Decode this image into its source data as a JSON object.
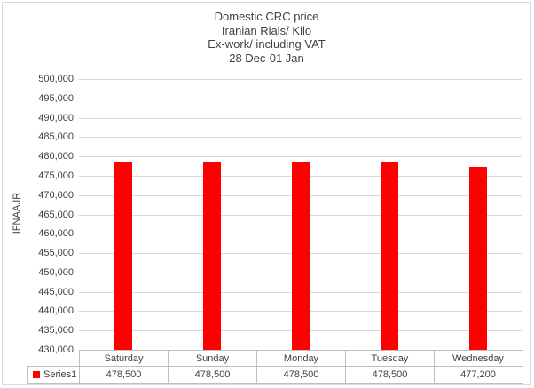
{
  "window": {
    "background": "#ffffff",
    "chart_border_color": "#d9d9d9"
  },
  "chart_data": {
    "type": "bar",
    "title_lines": [
      "Domestic CRC price",
      "Iranian Rials/ Kilo",
      "Ex-work/ including VAT",
      "28 Dec-01 Jan"
    ],
    "categories": [
      "Saturday",
      "Sunday",
      "Monday",
      "Tuesday",
      "Wednesday"
    ],
    "series": [
      {
        "name": "Series1",
        "color": "#ff0000",
        "values": [
          478500,
          478500,
          478500,
          478500,
          477200
        ]
      }
    ],
    "value_labels": [
      "478,500",
      "478,500",
      "478,500",
      "478,500",
      "477,200"
    ],
    "xlabel": "",
    "ylabel": "IFNAA.IR",
    "ylim": [
      430000,
      500000
    ],
    "ytick_step": 5000,
    "ytick_labels": [
      "500,000",
      "495,000",
      "490,000",
      "485,000",
      "480,000",
      "475,000",
      "470,000",
      "465,000",
      "460,000",
      "455,000",
      "450,000",
      "445,000",
      "440,000",
      "435,000",
      "430,000"
    ],
    "grid": true,
    "legend_position": "data-table-left",
    "data_table_shown": true
  },
  "colors": {
    "text": "#404040",
    "bar": "#ff0000",
    "gridline": "#d9d9d9",
    "table_border": "#bfbfbf",
    "legend_swatch": "#ff0000"
  }
}
